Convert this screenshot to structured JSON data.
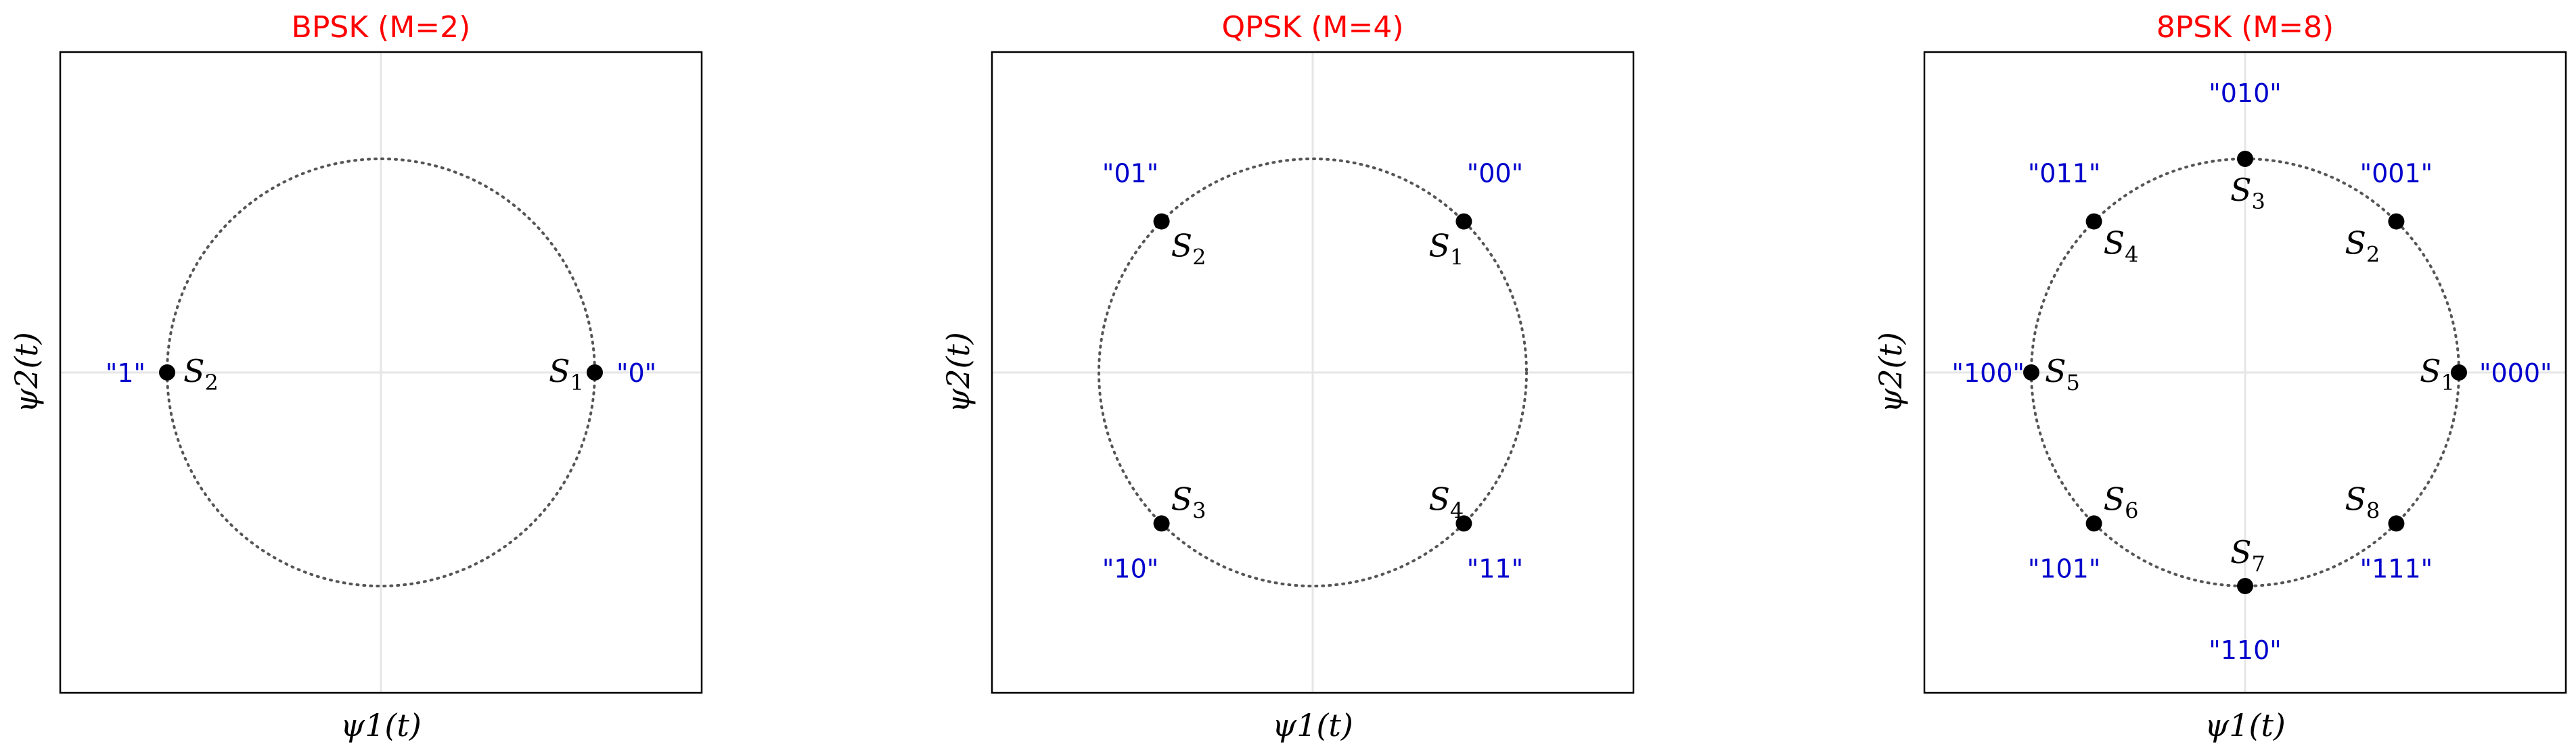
{
  "colors": {
    "title": "#ff0000",
    "bits": "#0000cc",
    "points": "#000000",
    "circle": "#555555",
    "grid": "#e6e6e6",
    "frame": "#000000"
  },
  "chart_data": [
    {
      "type": "scatter",
      "title": "BPSK (M=2)",
      "xlabel": "ψ1(t)",
      "ylabel": "ψ2(t)",
      "xlim": [
        -1.5,
        1.5
      ],
      "ylim": [
        -1.5,
        1.5
      ],
      "unit_circle": true,
      "grid": true,
      "points": [
        {
          "symbol": "S",
          "index": "1",
          "bits": "\"0\"",
          "x": 1.0,
          "y": 0.0
        },
        {
          "symbol": "S",
          "index": "2",
          "bits": "\"1\"",
          "x": -1.0,
          "y": 0.0
        }
      ]
    },
    {
      "type": "scatter",
      "title": "QPSK (M=4)",
      "xlabel": "ψ1(t)",
      "ylabel": "ψ2(t)",
      "xlim": [
        -1.5,
        1.5
      ],
      "ylim": [
        -1.5,
        1.5
      ],
      "unit_circle": true,
      "grid": true,
      "points": [
        {
          "symbol": "S",
          "index": "1",
          "bits": "\"00\"",
          "x": 0.707,
          "y": 0.707
        },
        {
          "symbol": "S",
          "index": "2",
          "bits": "\"01\"",
          "x": -0.707,
          "y": 0.707
        },
        {
          "symbol": "S",
          "index": "3",
          "bits": "\"10\"",
          "x": -0.707,
          "y": -0.707
        },
        {
          "symbol": "S",
          "index": "4",
          "bits": "\"11\"",
          "x": 0.707,
          "y": -0.707
        }
      ]
    },
    {
      "type": "scatter",
      "title": "8PSK (M=8)",
      "xlabel": "ψ1(t)",
      "ylabel": "ψ2(t)",
      "xlim": [
        -1.5,
        1.5
      ],
      "ylim": [
        -1.5,
        1.5
      ],
      "unit_circle": true,
      "grid": true,
      "points": [
        {
          "symbol": "S",
          "index": "1",
          "bits": "\"000\"",
          "x": 1.0,
          "y": 0.0
        },
        {
          "symbol": "S",
          "index": "2",
          "bits": "\"001\"",
          "x": 0.707,
          "y": 0.707
        },
        {
          "symbol": "S",
          "index": "3",
          "bits": "\"010\"",
          "x": 0.0,
          "y": 1.0
        },
        {
          "symbol": "S",
          "index": "4",
          "bits": "\"011\"",
          "x": -0.707,
          "y": 0.707
        },
        {
          "symbol": "S",
          "index": "5",
          "bits": "\"100\"",
          "x": -1.0,
          "y": 0.0
        },
        {
          "symbol": "S",
          "index": "6",
          "bits": "\"101\"",
          "x": -0.707,
          "y": -0.707
        },
        {
          "symbol": "S",
          "index": "7",
          "bits": "\"110\"",
          "x": 0.0,
          "y": -1.0
        },
        {
          "symbol": "S",
          "index": "8",
          "bits": "\"111\"",
          "x": 0.707,
          "y": -0.707
        }
      ]
    }
  ]
}
